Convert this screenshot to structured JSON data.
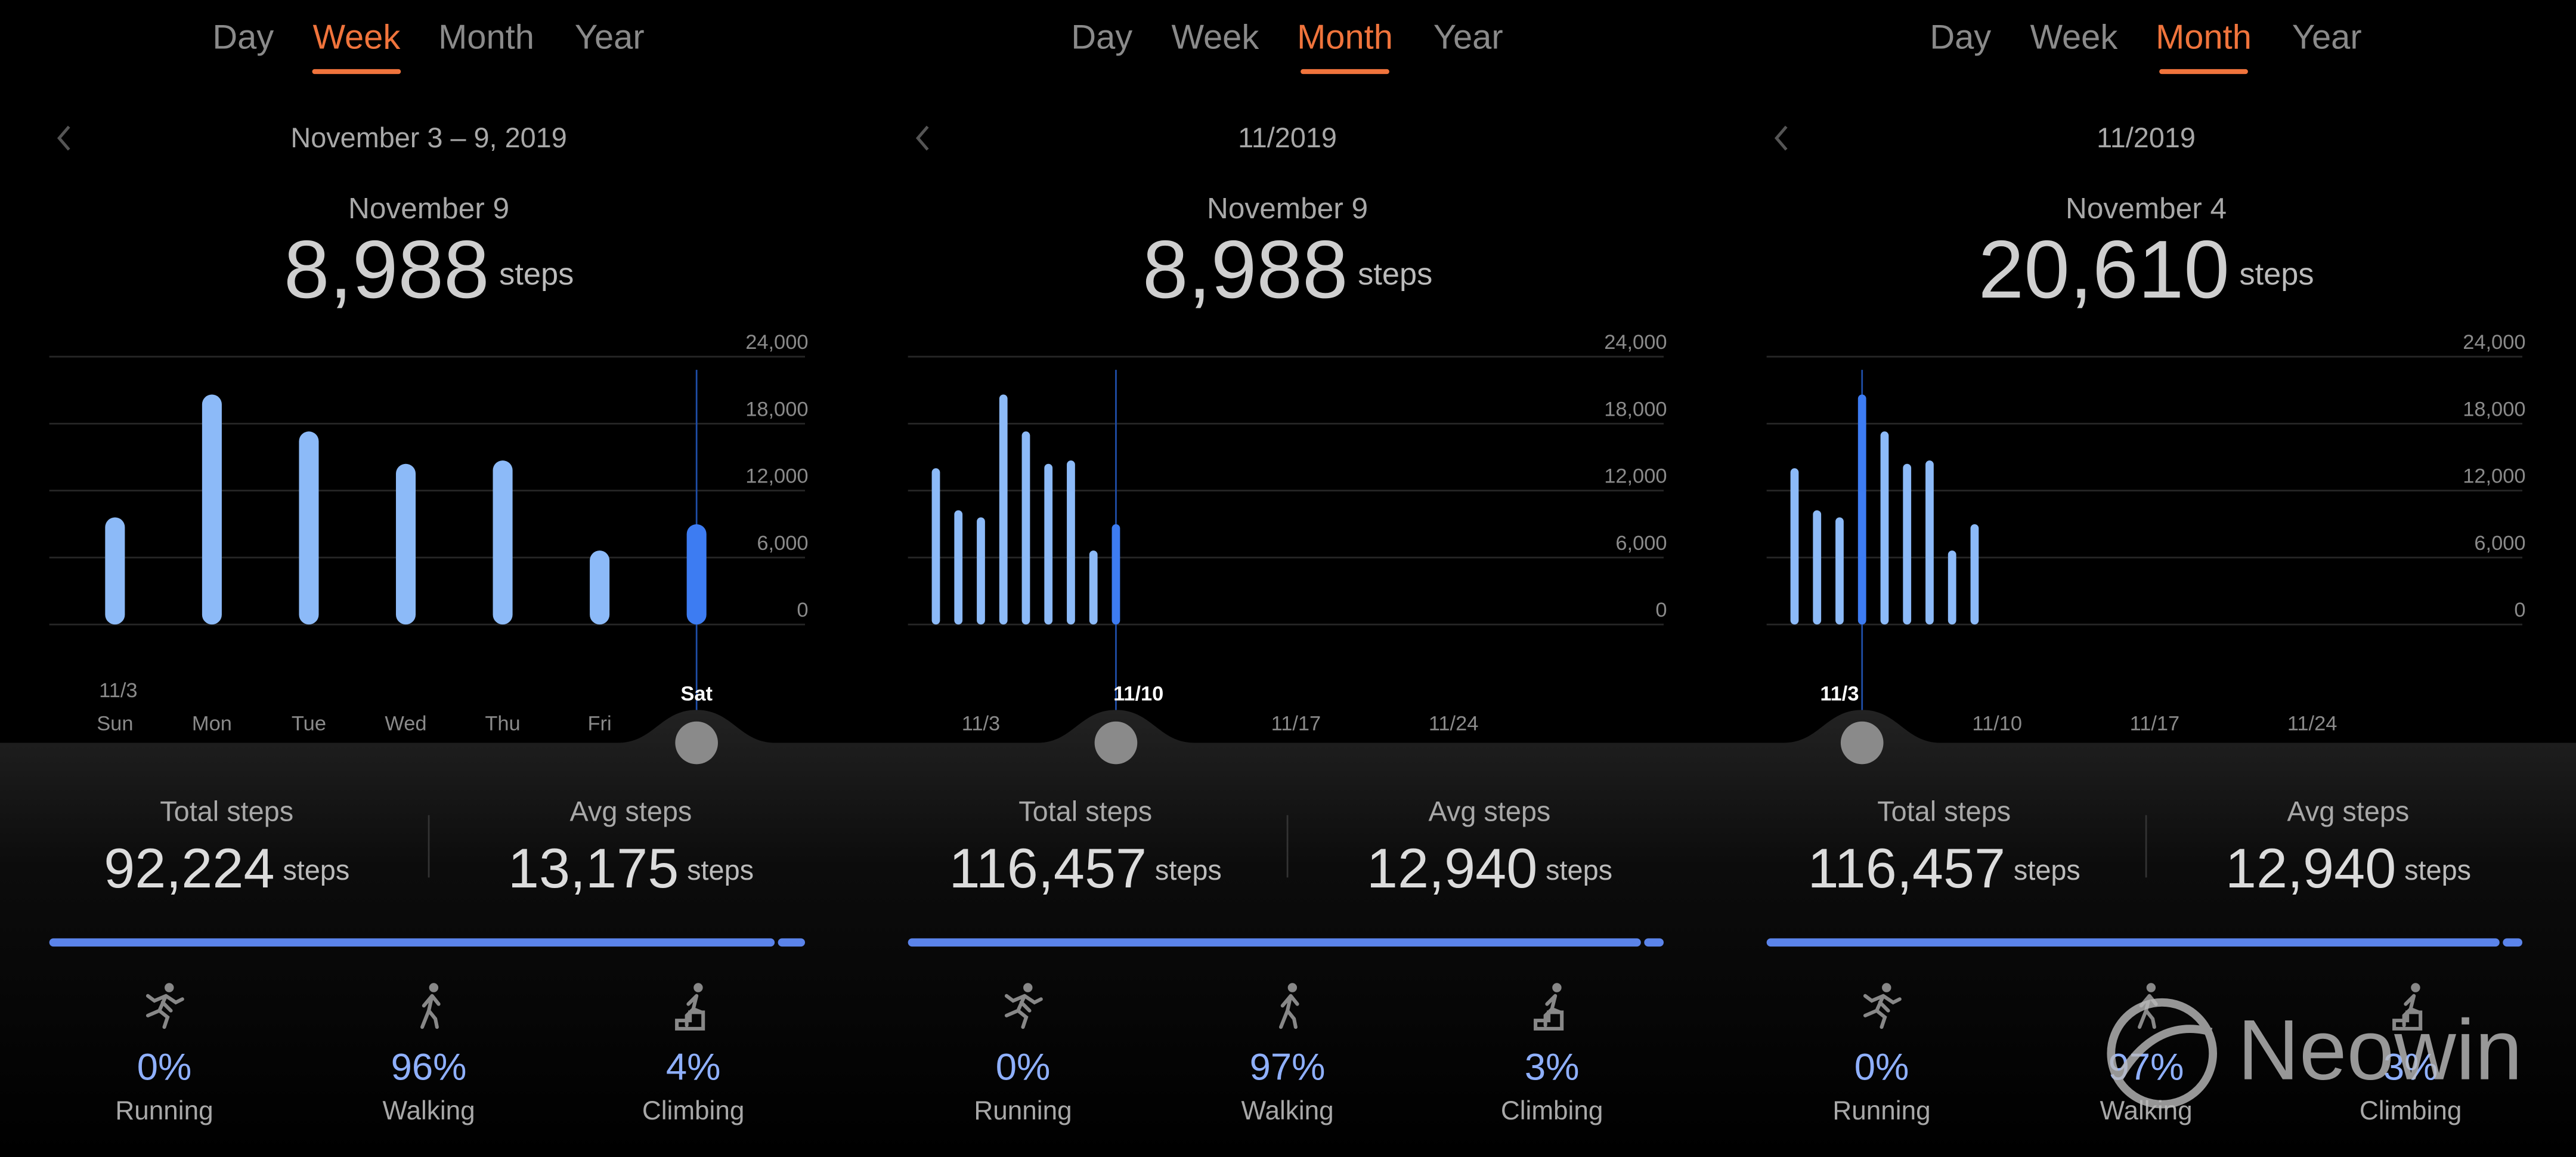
{
  "panels": [
    {
      "tabs": [
        "Day",
        "Week",
        "Month",
        "Year"
      ],
      "active_tab": 1,
      "range": "November 3 – 9, 2019",
      "selected_date": "November 9",
      "selected_value": "8,988",
      "unit": "steps",
      "chart": {
        "type": "bar",
        "ylim": [
          0,
          24000
        ],
        "yticks": [
          0,
          {
            "value": 6000,
            "label": "6,000"
          },
          {
            "value": 12000,
            "label": "12,000"
          },
          {
            "value": 18000,
            "label": "18,000"
          },
          {
            "value": 24000,
            "label": "24,000"
          }
        ],
        "values": [
          9600,
          20610,
          17300,
          14400,
          14700,
          6626,
          8988
        ],
        "selected": 6,
        "start_label": "11/3",
        "labels": [
          {
            "index": 0,
            "text": "Sun"
          },
          {
            "index": 1,
            "text": "Mon"
          },
          {
            "index": 2,
            "text": "Tue"
          },
          {
            "index": 3,
            "text": "Wed"
          },
          {
            "index": 4,
            "text": "Thu"
          },
          {
            "index": 5,
            "text": "Fri"
          },
          {
            "index": 6,
            "text": "Sat"
          }
        ],
        "highlight_label": 6
      },
      "stats": [
        {
          "label": "Total steps",
          "value": "92,224"
        },
        {
          "label": "Avg steps",
          "value": "13,175"
        }
      ],
      "activities": [
        {
          "name": "Running",
          "percent": 0,
          "percent_label": "0%"
        },
        {
          "name": "Walking",
          "percent": 96,
          "percent_label": "96%"
        },
        {
          "name": "Climbing",
          "percent": 4,
          "percent_label": "4%"
        }
      ]
    },
    {
      "tabs": [
        "Day",
        "Week",
        "Month",
        "Year"
      ],
      "active_tab": 2,
      "range": "11/2019",
      "selected_date": "November 9",
      "selected_value": "8,988",
      "unit": "steps",
      "chart": {
        "type": "bar",
        "ylim": [
          0,
          24000
        ],
        "yticks": [
          0,
          {
            "value": 6000,
            "label": "6,000"
          },
          {
            "value": 12000,
            "label": "12,000"
          },
          {
            "value": 18000,
            "label": "18,000"
          },
          {
            "value": 24000,
            "label": "24,000"
          }
        ],
        "values": [
          14000,
          10233,
          9600,
          20610,
          17300,
          14400,
          14700,
          6626,
          8988,
          null,
          null,
          null,
          null,
          null,
          null,
          null,
          null,
          null,
          null,
          null,
          null,
          null,
          null,
          null,
          null,
          null,
          null,
          null,
          null,
          null
        ],
        "selected": 8,
        "labels": [
          {
            "index": 2,
            "text": "11/3"
          },
          {
            "index": 9,
            "text": "11/10"
          },
          {
            "index": 16,
            "text": "11/17"
          },
          {
            "index": 23,
            "text": "11/24"
          }
        ],
        "highlight_label": 1
      },
      "stats": [
        {
          "label": "Total steps",
          "value": "116,457"
        },
        {
          "label": "Avg steps",
          "value": "12,940"
        }
      ],
      "activities": [
        {
          "name": "Running",
          "percent": 0,
          "percent_label": "0%"
        },
        {
          "name": "Walking",
          "percent": 97,
          "percent_label": "97%"
        },
        {
          "name": "Climbing",
          "percent": 3,
          "percent_label": "3%"
        }
      ]
    },
    {
      "tabs": [
        "Day",
        "Week",
        "Month",
        "Year"
      ],
      "active_tab": 2,
      "range": "11/2019",
      "selected_date": "November 4",
      "selected_value": "20,610",
      "unit": "steps",
      "chart": {
        "type": "bar",
        "ylim": [
          0,
          24000
        ],
        "yticks": [
          0,
          {
            "value": 6000,
            "label": "6,000"
          },
          {
            "value": 12000,
            "label": "12,000"
          },
          {
            "value": 18000,
            "label": "18,000"
          },
          {
            "value": 24000,
            "label": "24,000"
          }
        ],
        "values": [
          14000,
          10233,
          9600,
          20610,
          17300,
          14400,
          14700,
          6626,
          8988,
          null,
          null,
          null,
          null,
          null,
          null,
          null,
          null,
          null,
          null,
          null,
          null,
          null,
          null,
          null,
          null,
          null,
          null,
          null,
          null,
          null
        ],
        "selected": 3,
        "labels": [
          {
            "index": 2,
            "text": "11/3"
          },
          {
            "index": 9,
            "text": "11/10"
          },
          {
            "index": 16,
            "text": "11/17"
          },
          {
            "index": 23,
            "text": "11/24"
          }
        ],
        "highlight_label": 0
      },
      "stats": [
        {
          "label": "Total steps",
          "value": "116,457"
        },
        {
          "label": "Avg steps",
          "value": "12,940"
        }
      ],
      "activities": [
        {
          "name": "Running",
          "percent": 0,
          "percent_label": "0%"
        },
        {
          "name": "Walking",
          "percent": 97,
          "percent_label": "97%"
        },
        {
          "name": "Climbing",
          "percent": 3,
          "percent_label": "3%"
        }
      ]
    }
  ],
  "watermark": "Neowin"
}
